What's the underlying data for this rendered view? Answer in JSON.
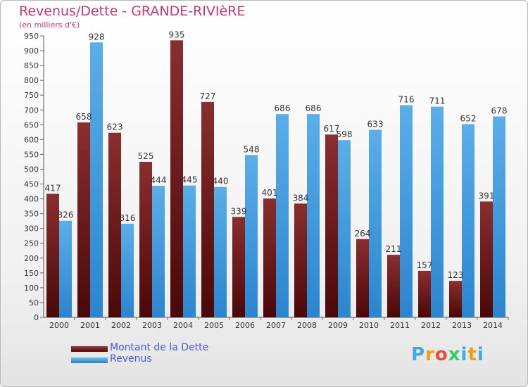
{
  "chart_data": {
    "type": "bar",
    "title": "Revenus/Dette - GRANDE-RIVIèRE",
    "subtitle": "(en milliers d'€)",
    "categories": [
      "2000",
      "2001",
      "2002",
      "2003",
      "2004",
      "2005",
      "2006",
      "2007",
      "2008",
      "2009",
      "2010",
      "2011",
      "2012",
      "2013",
      "2014"
    ],
    "series": [
      {
        "name": "Montant de la Dette",
        "color": "#7a1f1f",
        "values": [
          417,
          658,
          623,
          525,
          935,
          727,
          339,
          401,
          384,
          617,
          264,
          211,
          157,
          123,
          391
        ]
      },
      {
        "name": "Revenus",
        "color": "#3f9fe0",
        "values": [
          326,
          928,
          316,
          444,
          445,
          440,
          548,
          686,
          686,
          598,
          633,
          716,
          711,
          652,
          678
        ]
      }
    ],
    "ylim": [
      0,
      950
    ],
    "ytick_step": 50,
    "grid": false,
    "legend_position": "bottom-left"
  },
  "logo": {
    "letters": [
      "P",
      "r",
      "o",
      "x",
      "i",
      "t",
      "i"
    ],
    "colors": [
      "#3fa9e0",
      "#f39c12",
      "#e74c3c",
      "#2ecc71",
      "#3fa9e0",
      "#f39c12",
      "#3fa9e0"
    ]
  }
}
